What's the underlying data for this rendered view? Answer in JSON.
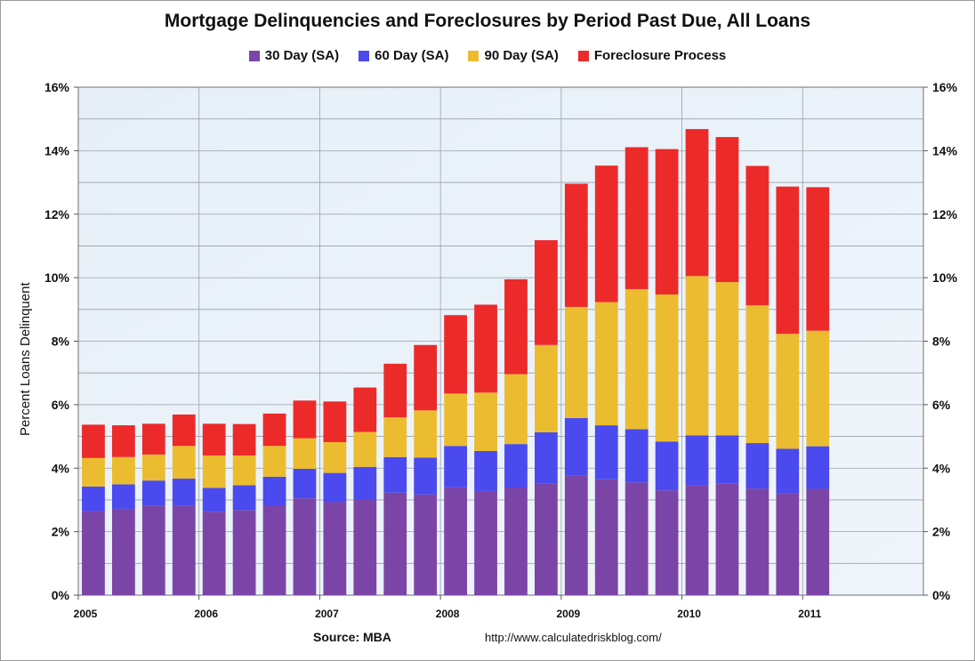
{
  "chart_data": {
    "type": "bar",
    "stacked": true,
    "title": "Mortgage Delinquencies and Foreclosures by Period Past Due, All Loans",
    "ylabel": "Percent Loans Delinquent",
    "ylim": [
      0,
      16
    ],
    "yticks": [
      "0%",
      "2%",
      "4%",
      "6%",
      "8%",
      "10%",
      "12%",
      "14%",
      "16%"
    ],
    "xticks": [
      "2005",
      "2006",
      "2007",
      "2008",
      "2009",
      "2010",
      "2011"
    ],
    "grid": true,
    "legend_position": "top",
    "categories": [
      "2005 Q1",
      "2005 Q2",
      "2005 Q3",
      "2005 Q4",
      "2006 Q1",
      "2006 Q2",
      "2006 Q3",
      "2006 Q4",
      "2007 Q1",
      "2007 Q2",
      "2007 Q3",
      "2007 Q4",
      "2008 Q1",
      "2008 Q2",
      "2008 Q3",
      "2008 Q4",
      "2009 Q1",
      "2009 Q2",
      "2009 Q3",
      "2009 Q4",
      "2010 Q1",
      "2010 Q2",
      "2010 Q3",
      "2010 Q4",
      "2011 Q1"
    ],
    "series": [
      {
        "name": "30 Day (SA)",
        "color": "#7b45a8",
        "values": [
          2.65,
          2.72,
          2.82,
          2.82,
          2.63,
          2.68,
          2.83,
          3.05,
          2.93,
          3.0,
          3.23,
          3.17,
          3.4,
          3.28,
          3.39,
          3.52,
          3.78,
          3.65,
          3.55,
          3.3,
          3.45,
          3.51,
          3.36,
          3.22,
          3.35
        ]
      },
      {
        "name": "60 Day (SA)",
        "color": "#4a4aee",
        "values": [
          0.77,
          0.77,
          0.79,
          0.85,
          0.75,
          0.78,
          0.9,
          0.93,
          0.92,
          1.04,
          1.12,
          1.16,
          1.3,
          1.26,
          1.37,
          1.61,
          1.8,
          1.7,
          1.68,
          1.54,
          1.58,
          1.52,
          1.43,
          1.39,
          1.34
        ]
      },
      {
        "name": "90 Day (SA)",
        "color": "#ecbc30",
        "values": [
          0.9,
          0.86,
          0.82,
          1.03,
          1.02,
          0.94,
          0.97,
          0.96,
          0.97,
          1.1,
          1.25,
          1.49,
          1.65,
          1.84,
          2.2,
          2.75,
          3.5,
          3.88,
          4.41,
          4.63,
          5.02,
          4.83,
          4.34,
          3.62,
          3.64
        ]
      },
      {
        "name": "Foreclosure Process",
        "color": "#ec2a2a",
        "values": [
          1.05,
          1.0,
          0.97,
          0.99,
          1.0,
          0.99,
          1.02,
          1.19,
          1.28,
          1.4,
          1.69,
          2.06,
          2.47,
          2.77,
          2.99,
          3.3,
          3.88,
          4.3,
          4.47,
          4.58,
          4.63,
          4.57,
          4.39,
          4.64,
          4.52
        ]
      }
    ]
  },
  "footer": {
    "source": "Source: MBA",
    "url": "http://www.calculatedriskblog.com/"
  }
}
